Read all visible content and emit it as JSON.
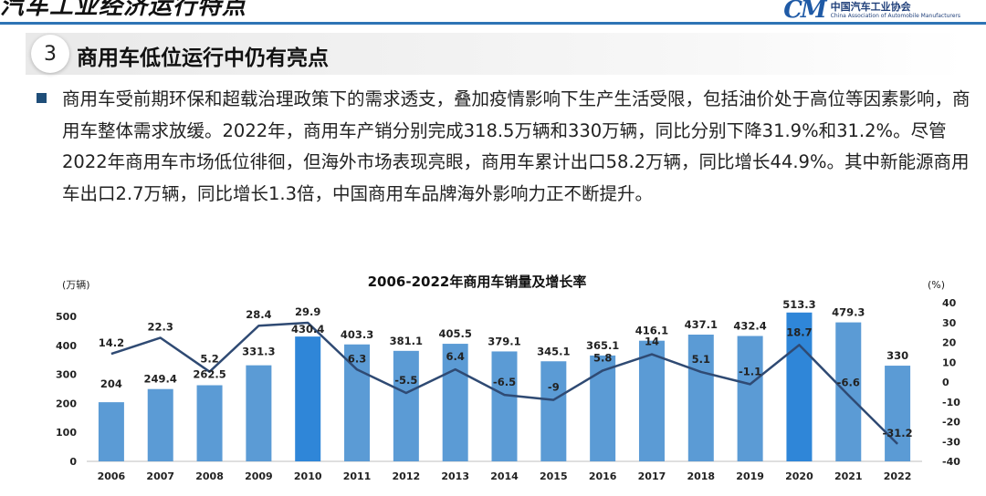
{
  "header": {
    "title": "汽车工业经济运行特点",
    "logo_mark": "CM",
    "logo_cn": "中国汽车工业协会",
    "logo_en": "China Association of Automobile Manufacturers"
  },
  "section": {
    "number": "3",
    "title": "商用车低位运行中仍有亮点"
  },
  "body_text": "商用车受前期环保和超载治理政策下的需求透支，叠加疫情影响下生产生活受限，包括油价处于高位等因素影响，商用车整体需求放缓。2022年，商用车产销分别完成318.5万辆和330万辆，同比分别下降31.9%和31.2%。尽管2022年商用车市场低位徘徊，但海外市场表现亮眼，商用车累计出口58.2万辆，同比增长44.9%。其中新能源商用车出口2.7万辆，同比增长1.3倍，中国商用车品牌海外影响力正不断提升。",
  "chart_data": {
    "type": "bar",
    "title": "2006-2022年商用车销量及增长率",
    "ylabel": "(万辆)",
    "y2label": "(%)",
    "categories": [
      "2006",
      "2007",
      "2008",
      "2009",
      "2010",
      "2011",
      "2012",
      "2013",
      "2014",
      "2015",
      "2016",
      "2017",
      "2018",
      "2019",
      "2020",
      "2021",
      "2022"
    ],
    "series": [
      {
        "type": "bar",
        "values": [
          204,
          249.4,
          262.5,
          331.3,
          430.4,
          403.3,
          381.1,
          405.5,
          379.1,
          345.1,
          365.1,
          416.1,
          437.1,
          432.4,
          513.3,
          479.3,
          330
        ],
        "color": "#5b9bd5",
        "highlight_color": "#2f86d8",
        "highlight_index": [
          4,
          14
        ]
      },
      {
        "type": "line",
        "axis": "right",
        "values": [
          14.2,
          22.3,
          5.2,
          28.4,
          29.9,
          6.3,
          -5.5,
          6.4,
          -6.5,
          -9,
          5.8,
          14,
          5.1,
          -1.1,
          18.7,
          -6.6,
          -31.2
        ],
        "color": "#2f4a73"
      }
    ],
    "ylim": [
      0,
      500
    ],
    "yticks": [
      0,
      100,
      200,
      300,
      400,
      500
    ],
    "y2lim": [
      -40,
      40
    ],
    "y2ticks": [
      -40,
      -30,
      -20,
      -10,
      0,
      10,
      20,
      30,
      40
    ],
    "grid": false,
    "legend": "none"
  }
}
